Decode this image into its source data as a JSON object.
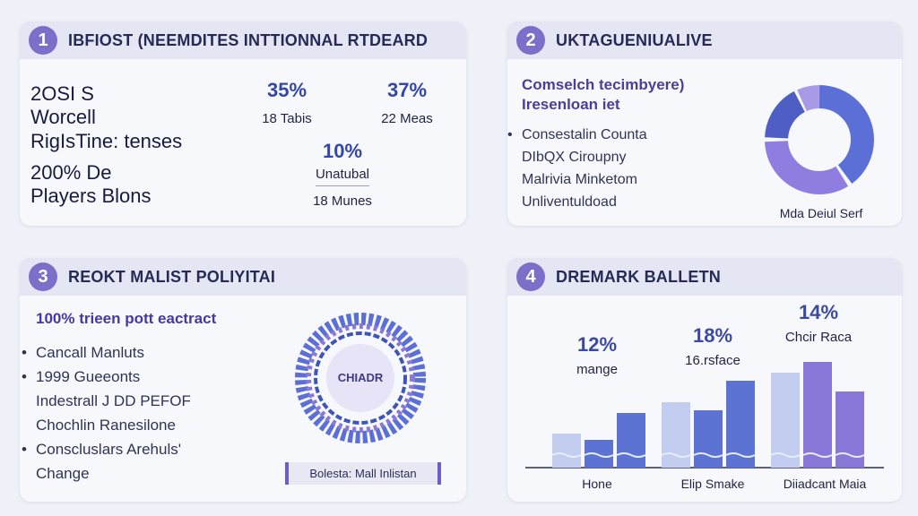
{
  "panel1": {
    "number": "1",
    "title": "IBFIOST (NEEMDITES INTTIONNAL RTDEARD",
    "left_lines": [
      "2OSI S",
      "Worcell",
      "RigIsTine: tenses"
    ],
    "left_lines2": [
      "200% De",
      "Players Blons"
    ],
    "stats": [
      {
        "value": "35%",
        "label": "18 Tabis"
      },
      {
        "value": "37%",
        "label": "22 Meas"
      },
      {
        "value": "10%",
        "label": "Unatubal",
        "sub": "18 Munes"
      }
    ]
  },
  "panel2": {
    "number": "2",
    "title": "UKTAGUENIUALIVE",
    "heading": [
      "Comselch tecimbyere)",
      "Iresenloan iet"
    ],
    "items": [
      "Consestalin Counta",
      "DIbQX Ciroupny",
      "Malrivia Minketom",
      "Unliventuldoad"
    ],
    "donut_label": "Mda Deiul Serf",
    "donut_colors": [
      "#5b6fd6",
      "#8f7ee0",
      "#4d5fc4",
      "#a99ae8"
    ]
  },
  "panel3": {
    "number": "3",
    "title": "REOKT MALIST POLIYITAI",
    "subtitle": "100% trieen pott eactract",
    "items": [
      "Cancall Manluts",
      "1999 Gueeonts",
      "Indestrall J DD PEFOF",
      "Chochlin Ranesilone",
      "Conscluslars Arehuls'",
      "Change"
    ],
    "bulleted": [
      true,
      true,
      false,
      false,
      true,
      false
    ],
    "ring_label": "CHIADR",
    "caption": "Bolesta: Mall Inlistan"
  },
  "panel4": {
    "number": "4",
    "title": "DREMARK BALLETN",
    "groups": [
      {
        "value": "12%",
        "label": "mange",
        "axis": "Hone",
        "bars": [
          0.32,
          0.26,
          0.52
        ]
      },
      {
        "value": "18%",
        "label": "16.rsface",
        "axis": "Elip Smake",
        "bars": [
          0.62,
          0.54,
          0.82
        ]
      },
      {
        "value": "14%",
        "label": "Chcir Raca",
        "axis": "Diiadcant Maia",
        "bars": [
          0.9,
          1.0,
          0.72
        ]
      }
    ]
  },
  "colors": {
    "accent": "#7b6fc9",
    "bar_light": "#c3cdf0",
    "bar_mid": "#5c73d4",
    "bar_purple": "#8a78d8"
  }
}
